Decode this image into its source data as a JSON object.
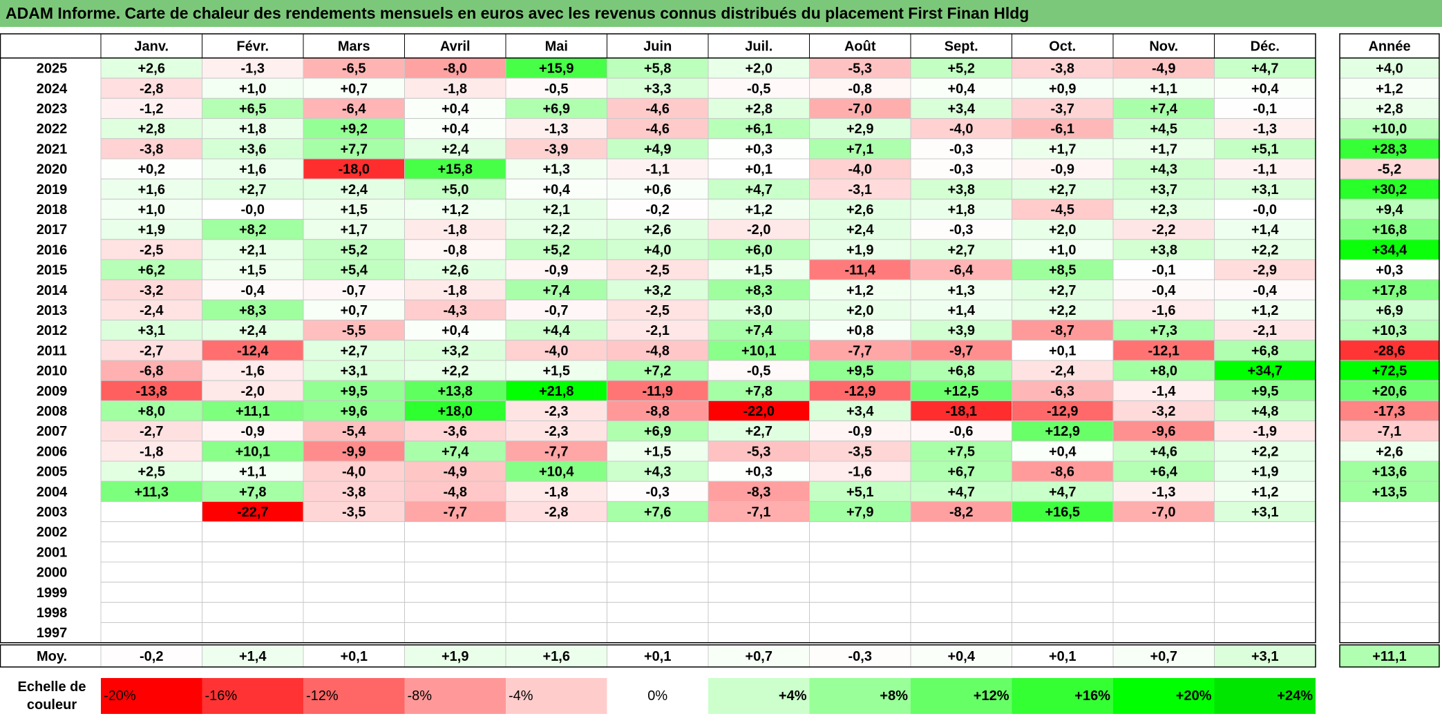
{
  "title": "ADAM Informe. Carte de chaleur des rendements mensuels en euros avec les revenus connus distribués du placement First Finan Hldg",
  "chart_data": {
    "type": "heatmap",
    "title": "ADAM Informe. Carte de chaleur des rendements mensuels en euros avec les revenus connus distribués du placement First Finan Hldg",
    "months": [
      "Janv.",
      "Févr.",
      "Mars",
      "Avril",
      "Mai",
      "Juin",
      "Juil.",
      "Août",
      "Sept.",
      "Oct.",
      "Nov.",
      "Déc."
    ],
    "annual_header": "Année",
    "average_label": "Moy.",
    "rows": [
      {
        "year": "2025",
        "values": [
          "+2,6",
          "-1,3",
          "-6,5",
          "-8,0",
          "+15,9",
          "+5,8",
          "+2,0",
          "-5,3",
          "+5,2",
          "-3,8",
          "-4,9",
          "+4,7"
        ],
        "annual": "+4,0"
      },
      {
        "year": "2024",
        "values": [
          "-2,8",
          "+1,0",
          "+0,7",
          "-1,8",
          "-0,5",
          "+3,3",
          "-0,5",
          "-0,8",
          "+0,4",
          "+0,9",
          "+1,1",
          "+0,4"
        ],
        "annual": "+1,2"
      },
      {
        "year": "2023",
        "values": [
          "-1,2",
          "+6,5",
          "-6,4",
          "+0,4",
          "+6,9",
          "-4,6",
          "+2,8",
          "-7,0",
          "+3,4",
          "-3,7",
          "+7,4",
          "-0,1"
        ],
        "annual": "+2,8"
      },
      {
        "year": "2022",
        "values": [
          "+2,8",
          "+1,8",
          "+9,2",
          "+0,4",
          "-1,3",
          "-4,6",
          "+6,1",
          "+2,9",
          "-4,0",
          "-6,1",
          "+4,5",
          "-1,3"
        ],
        "annual": "+10,0"
      },
      {
        "year": "2021",
        "values": [
          "-3,8",
          "+3,6",
          "+7,7",
          "+2,4",
          "-3,9",
          "+4,9",
          "+0,3",
          "+7,1",
          "-0,3",
          "+1,7",
          "+1,7",
          "+5,1"
        ],
        "annual": "+28,3"
      },
      {
        "year": "2020",
        "values": [
          "+0,2",
          "+1,6",
          "-18,0",
          "+15,8",
          "+1,3",
          "-1,1",
          "+0,1",
          "-4,0",
          "-0,3",
          "-0,9",
          "+4,3",
          "-1,1"
        ],
        "annual": "-5,2"
      },
      {
        "year": "2019",
        "values": [
          "+1,6",
          "+2,7",
          "+2,4",
          "+5,0",
          "+0,4",
          "+0,6",
          "+4,7",
          "-3,1",
          "+3,8",
          "+2,7",
          "+3,7",
          "+3,1"
        ],
        "annual": "+30,2"
      },
      {
        "year": "2018",
        "values": [
          "+1,0",
          "-0,0",
          "+1,5",
          "+1,2",
          "+2,1",
          "-0,2",
          "+1,2",
          "+2,6",
          "+1,8",
          "-4,5",
          "+2,3",
          "-0,0"
        ],
        "annual": "+9,4"
      },
      {
        "year": "2017",
        "values": [
          "+1,9",
          "+8,2",
          "+1,7",
          "-1,8",
          "+2,2",
          "+2,6",
          "-2,0",
          "+2,4",
          "-0,3",
          "+2,0",
          "-2,2",
          "+1,4"
        ],
        "annual": "+16,8"
      },
      {
        "year": "2016",
        "values": [
          "-2,5",
          "+2,1",
          "+5,2",
          "-0,8",
          "+5,2",
          "+4,0",
          "+6,0",
          "+1,9",
          "+2,7",
          "+1,0",
          "+3,8",
          "+2,2"
        ],
        "annual": "+34,4"
      },
      {
        "year": "2015",
        "values": [
          "+6,2",
          "+1,5",
          "+5,4",
          "+2,6",
          "-0,9",
          "-2,5",
          "+1,5",
          "-11,4",
          "-6,4",
          "+8,5",
          "-0,1",
          "-2,9"
        ],
        "annual": "+0,3"
      },
      {
        "year": "2014",
        "values": [
          "-3,2",
          "-0,4",
          "-0,7",
          "-1,8",
          "+7,4",
          "+3,2",
          "+8,3",
          "+1,2",
          "+1,3",
          "+2,7",
          "-0,4",
          "-0,4"
        ],
        "annual": "+17,8"
      },
      {
        "year": "2013",
        "values": [
          "-2,4",
          "+8,3",
          "+0,7",
          "-4,3",
          "-0,7",
          "-2,5",
          "+3,0",
          "+2,0",
          "+1,4",
          "+2,2",
          "-1,6",
          "+1,2"
        ],
        "annual": "+6,9"
      },
      {
        "year": "2012",
        "values": [
          "+3,1",
          "+2,4",
          "-5,5",
          "+0,4",
          "+4,4",
          "-2,1",
          "+7,4",
          "+0,8",
          "+3,9",
          "-8,7",
          "+7,3",
          "-2,1"
        ],
        "annual": "+10,3"
      },
      {
        "year": "2011",
        "values": [
          "-2,7",
          "-12,4",
          "+2,7",
          "+3,2",
          "-4,0",
          "-4,8",
          "+10,1",
          "-7,7",
          "-9,7",
          "+0,1",
          "-12,1",
          "+6,8"
        ],
        "annual": "-28,6"
      },
      {
        "year": "2010",
        "values": [
          "-6,8",
          "-1,6",
          "+3,1",
          "+2,2",
          "+1,5",
          "+7,2",
          "-0,5",
          "+9,5",
          "+6,8",
          "-2,4",
          "+8,0",
          "+34,7"
        ],
        "annual": "+72,5"
      },
      {
        "year": "2009",
        "values": [
          "-13,8",
          "-2,0",
          "+9,5",
          "+13,8",
          "+21,8",
          "-11,9",
          "+7,8",
          "-12,9",
          "+12,5",
          "-6,3",
          "-1,4",
          "+9,5"
        ],
        "annual": "+20,6"
      },
      {
        "year": "2008",
        "values": [
          "+8,0",
          "+11,1",
          "+9,6",
          "+18,0",
          "-2,3",
          "-8,8",
          "-22,0",
          "+3,4",
          "-18,1",
          "-12,9",
          "-3,2",
          "+4,8"
        ],
        "annual": "-17,3"
      },
      {
        "year": "2007",
        "values": [
          "-2,7",
          "-0,9",
          "-5,4",
          "-3,6",
          "-2,3",
          "+6,9",
          "+2,7",
          "-0,9",
          "-0,6",
          "+12,9",
          "-9,6",
          "-1,9"
        ],
        "annual": "-7,1"
      },
      {
        "year": "2006",
        "values": [
          "-1,8",
          "+10,1",
          "-9,9",
          "+7,4",
          "-7,7",
          "+1,5",
          "-5,3",
          "-3,5",
          "+7,5",
          "+0,4",
          "+4,6",
          "+2,2"
        ],
        "annual": "+2,6"
      },
      {
        "year": "2005",
        "values": [
          "+2,5",
          "+1,1",
          "-4,0",
          "-4,9",
          "+10,4",
          "+4,3",
          "+0,3",
          "-1,6",
          "+6,7",
          "-8,6",
          "+6,4",
          "+1,9"
        ],
        "annual": "+13,6"
      },
      {
        "year": "2004",
        "values": [
          "+11,3",
          "+7,8",
          "-3,8",
          "-4,8",
          "-1,8",
          "-0,3",
          "-8,3",
          "+5,1",
          "+4,7",
          "+4,7",
          "-1,3",
          "+1,2"
        ],
        "annual": "+13,5"
      },
      {
        "year": "2003",
        "values": [
          "",
          "-22,7",
          "-3,5",
          "-7,7",
          "-2,8",
          "+7,6",
          "-7,1",
          "+7,9",
          "-8,2",
          "+16,5",
          "-7,0",
          "+3,1"
        ],
        "annual": ""
      },
      {
        "year": "2002",
        "values": [
          "",
          "",
          "",
          "",
          "",
          "",
          "",
          "",
          "",
          "",
          "",
          ""
        ],
        "annual": ""
      },
      {
        "year": "2001",
        "values": [
          "",
          "",
          "",
          "",
          "",
          "",
          "",
          "",
          "",
          "",
          "",
          ""
        ],
        "annual": ""
      },
      {
        "year": "2000",
        "values": [
          "",
          "",
          "",
          "",
          "",
          "",
          "",
          "",
          "",
          "",
          "",
          ""
        ],
        "annual": ""
      },
      {
        "year": "1999",
        "values": [
          "",
          "",
          "",
          "",
          "",
          "",
          "",
          "",
          "",
          "",
          "",
          ""
        ],
        "annual": ""
      },
      {
        "year": "1998",
        "values": [
          "",
          "",
          "",
          "",
          "",
          "",
          "",
          "",
          "",
          "",
          "",
          ""
        ],
        "annual": ""
      },
      {
        "year": "1997",
        "values": [
          "",
          "",
          "",
          "",
          "",
          "",
          "",
          "",
          "",
          "",
          "",
          ""
        ],
        "annual": ""
      }
    ],
    "averages": {
      "values": [
        "-0,2",
        "+1,4",
        "+0,1",
        "+1,9",
        "+1,6",
        "+0,1",
        "+0,7",
        "-0,3",
        "+0,4",
        "+0,1",
        "+0,7",
        "+3,1"
      ],
      "annual": "+11,1"
    },
    "scale": {
      "label_line1": "Echelle de",
      "label_line2": "couleur",
      "steps": [
        {
          "label": "-20%",
          "color": "#ff0000"
        },
        {
          "label": "-16%",
          "color": "#ff3333"
        },
        {
          "label": "-12%",
          "color": "#ff6666"
        },
        {
          "label": "-8%",
          "color": "#ff9999"
        },
        {
          "label": "-4%",
          "color": "#ffcccc"
        },
        {
          "label": "0%",
          "color": "#ffffff"
        },
        {
          "label": "+4%",
          "color": "#ccffcc"
        },
        {
          "label": "+8%",
          "color": "#99ff99"
        },
        {
          "label": "+12%",
          "color": "#66ff66"
        },
        {
          "label": "+16%",
          "color": "#33ff33"
        },
        {
          "label": "+20%",
          "color": "#00ff00"
        },
        {
          "label": "+24%",
          "color": "#00e600"
        }
      ]
    },
    "colors": {
      "negative_max": "#ff0000",
      "neutral": "#ffffff",
      "positive_max": "#00ff00",
      "title_bar": "#7cc87a"
    }
  }
}
